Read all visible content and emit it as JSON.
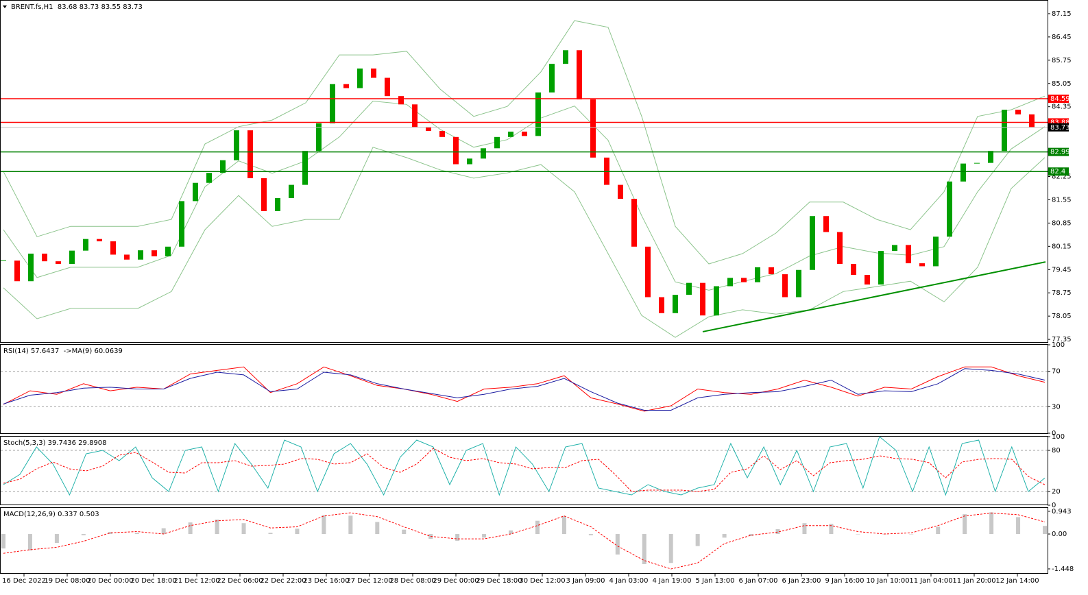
{
  "chart_data": [
    {
      "type": "candlestick",
      "title": "BRENT.fs,H1  83.68 83.73 83.55 83.73",
      "close": [
        79.72,
        79.1,
        79.93,
        79.7,
        79.62,
        80.02,
        80.37,
        80.3,
        79.9,
        79.75,
        80.03,
        79.85,
        80.14,
        81.51,
        82.06,
        82.36,
        82.74,
        83.64,
        82.2,
        81.21,
        81.6,
        82.0,
        83.02,
        83.85,
        85.03,
        84.91,
        85.5,
        85.22,
        84.67,
        84.42,
        83.74,
        83.62,
        83.44,
        82.62,
        82.79,
        83.1,
        83.44,
        83.6,
        83.47,
        84.78,
        85.64,
        86.05,
        84.57,
        82.82,
        82.0,
        81.58,
        80.14,
        78.62,
        78.14,
        78.69,
        79.05,
        78.07,
        78.95,
        79.2,
        79.07,
        79.52,
        79.31,
        78.62,
        79.44,
        81.06,
        80.58,
        79.62,
        79.29,
        79.0,
        80.01,
        80.19,
        79.64,
        79.55,
        80.44,
        82.1,
        82.64,
        82.66,
        83.02,
        84.26,
        84.12,
        83.73
      ],
      "up_color": "#00a000",
      "down_color": "#ff0000",
      "ylim": [
        77.29,
        87.52
      ],
      "yticks": [
        87.15,
        86.45,
        85.75,
        85.05,
        84.35,
        82.25,
        81.55,
        80.85,
        80.15,
        79.45,
        78.75,
        78.05,
        77.35
      ],
      "bollinger": {
        "color": "#8cc48c",
        "upper": [
          82.4,
          80.44,
          80.75,
          80.75,
          80.75,
          80.96,
          83.23,
          83.75,
          83.95,
          84.47,
          85.91,
          85.91,
          86.02,
          84.88,
          84.06,
          84.36,
          85.4,
          86.94,
          86.74,
          84.06,
          80.75,
          79.62,
          79.93,
          80.55,
          81.48,
          81.48,
          80.96,
          80.65,
          81.79,
          84.06,
          84.26,
          84.67
        ],
        "middle": [
          80.65,
          79.21,
          79.52,
          79.52,
          79.52,
          79.88,
          81.94,
          82.72,
          82.35,
          82.72,
          83.44,
          84.52,
          84.42,
          83.67,
          83.13,
          83.36,
          84.01,
          84.37,
          83.34,
          81.07,
          79.08,
          78.83,
          79.09,
          79.33,
          79.86,
          80.14,
          79.95,
          79.88,
          80.14,
          81.79,
          83.08,
          83.75
        ],
        "lower": [
          78.9,
          77.97,
          78.28,
          78.28,
          78.28,
          78.79,
          80.65,
          81.68,
          80.75,
          80.96,
          80.96,
          83.13,
          82.82,
          82.45,
          82.2,
          82.36,
          82.61,
          81.79,
          79.93,
          78.07,
          77.41,
          78.03,
          78.24,
          78.11,
          78.24,
          78.79,
          78.94,
          79.1,
          78.48,
          79.52,
          81.89,
          82.82
        ]
      },
      "levels": [
        {
          "value": 84.59,
          "color": "#ff0000"
        },
        {
          "value": 83.88,
          "color": "#ff0000"
        },
        {
          "value": 82.99,
          "color": "#008000"
        },
        {
          "value": 82.4,
          "color": "#008000"
        }
      ],
      "last_price": 83.73,
      "trendline": {
        "x": [
          51,
          76
        ],
        "values": [
          77.58,
          79.68
        ],
        "color": "#009000"
      },
      "x_labels": [
        "16 Dec 2022",
        "19 Dec 08:00",
        "20 Dec 00:00",
        "20 Dec 18:00",
        "21 Dec 12:00",
        "22 Dec 06:00",
        "22 Dec 22:00",
        "23 Dec 16:00",
        "27 Dec 12:00",
        "28 Dec 08:00",
        "29 Dec 00:00",
        "29 Dec 18:00",
        "30 Dec 12:00",
        "3 Jan 09:00",
        "4 Jan 03:00",
        "4 Jan 19:00",
        "5 Jan 13:00",
        "6 Jan 07:00",
        "6 Jan 23:00",
        "9 Jan 16:00",
        "10 Jan 10:00",
        "11 Jan 04:00",
        "11 Jan 20:00",
        "12 Jan 14:00"
      ]
    },
    {
      "type": "line",
      "title": "RSI(14) 57.6437  ->MA(9) 60.0639",
      "series": [
        {
          "color": "#ff0000",
          "values": [
            32.6,
            48,
            44,
            56,
            48,
            52,
            50,
            67,
            71,
            75,
            46,
            56,
            75,
            65,
            54,
            50,
            44,
            36,
            50,
            52,
            56,
            65,
            40,
            33,
            25,
            31,
            50,
            46,
            44,
            50,
            60,
            52,
            42,
            52,
            50,
            64,
            75,
            75,
            65,
            57.64
          ]
        },
        {
          "color": "#1a1aa0",
          "values": [
            33,
            43,
            46,
            51,
            52,
            50,
            50,
            62,
            69,
            66,
            47,
            50,
            69,
            66,
            56,
            50,
            45,
            40,
            44,
            50,
            53,
            62,
            47,
            34,
            26,
            26,
            40,
            44,
            46,
            47,
            53,
            60,
            44,
            48,
            47,
            56,
            73,
            71,
            67,
            60.06
          ]
        }
      ],
      "ylim": [
        0,
        100
      ],
      "yticks": [
        100,
        70,
        30,
        0
      ],
      "grid": true
    },
    {
      "type": "line",
      "title": "Stoch(5,3,3) 39.7436 29.8908",
      "series": [
        {
          "color": "#20b2aa",
          "values": [
            30,
            45,
            85,
            60,
            15,
            75,
            80,
            65,
            85,
            40,
            20,
            80,
            85,
            20,
            90,
            60,
            25,
            95,
            85,
            20,
            75,
            90,
            60,
            15,
            70,
            95,
            85,
            30,
            80,
            90,
            15,
            85,
            60,
            20,
            85,
            90,
            25,
            20,
            15,
            30,
            20,
            15,
            25,
            30,
            90,
            40,
            85,
            30,
            80,
            20,
            85,
            90,
            25,
            100,
            80,
            20,
            85,
            15,
            90,
            95,
            20,
            85,
            20,
            39.74
          ]
        },
        {
          "color": "#ff0000",
          "dashed": true,
          "values": [
            32,
            38,
            53,
            63,
            53,
            50,
            57,
            73,
            77,
            63,
            48,
            47,
            62,
            62,
            65,
            57,
            58,
            60,
            68,
            67,
            60,
            62,
            75,
            55,
            48,
            60,
            83,
            70,
            65,
            68,
            62,
            60,
            53,
            55,
            55,
            65,
            67,
            45,
            20,
            22,
            22,
            22,
            20,
            23,
            48,
            53,
            72,
            52,
            65,
            43,
            62,
            65,
            67,
            72,
            68,
            67,
            62,
            40,
            63,
            67,
            68,
            67,
            42,
            29.89
          ]
        }
      ],
      "ylim": [
        0,
        100
      ],
      "yticks": [
        100,
        80,
        20,
        0
      ],
      "grid": true
    },
    {
      "type": "macd",
      "title": "MACD(12,26,9) 0.337 0.503",
      "values": [
        -0.6,
        -0.68,
        -0.37,
        -0.05,
        0.08,
        0.05,
        0.24,
        0.48,
        0.6,
        0.45,
        0.05,
        0.22,
        0.78,
        0.76,
        0.5,
        0.18,
        -0.2,
        -0.28,
        -0.15,
        0.15,
        0.55,
        0.75,
        -0.05,
        -0.85,
        -1.25,
        -1.2,
        -0.5,
        -0.15,
        -0.08,
        0.2,
        0.45,
        0.42,
        0.0,
        0.0,
        0.0,
        0.3,
        0.82,
        0.9,
        0.7,
        0.337
      ],
      "color": "#c8c8c8",
      "signal": {
        "color": "#ff0000",
        "values": [
          -0.8,
          -0.65,
          -0.55,
          -0.3,
          0.05,
          0.1,
          0.0,
          0.35,
          0.55,
          0.6,
          0.25,
          0.3,
          0.75,
          0.88,
          0.72,
          0.3,
          -0.1,
          -0.2,
          -0.2,
          0.0,
          0.35,
          0.75,
          0.3,
          -0.5,
          -1.1,
          -1.45,
          -1.2,
          -0.4,
          -0.05,
          0.08,
          0.35,
          0.35,
          0.1,
          0.0,
          0.05,
          0.35,
          0.75,
          0.87,
          0.8,
          0.503
        ]
      },
      "ylim": [
        -1.62,
        1.11
      ],
      "yticks": [
        0.943,
        {
          "value": 0,
          "label": "0.00"
        },
        -1.448
      ]
    }
  ]
}
